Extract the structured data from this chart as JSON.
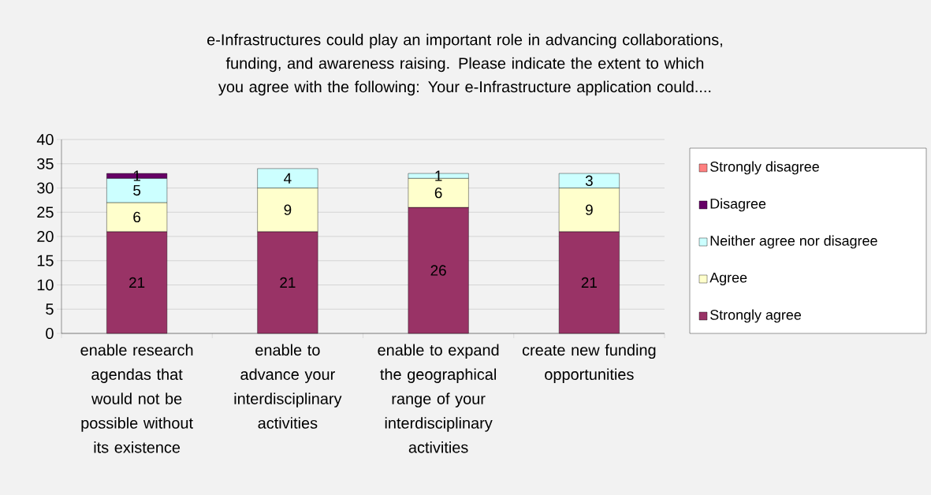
{
  "chart_data": {
    "type": "bar",
    "title": "e-Infrastructures could play an important role in advancing collaborations, funding, and awareness raising. Please indicate the extent to which you agree with the following:  Your e-Infrastructure application could....",
    "categories": [
      "enable research agendas that would not be possible without its existence",
      "enable to advance your interdisciplinary activities",
      "enable to expand the geographical range of your interdisciplinary activities",
      "create new funding opportunities"
    ],
    "series": [
      {
        "name": "Strongly agree",
        "color": "#993366",
        "values": [
          21,
          21,
          26,
          21
        ]
      },
      {
        "name": "Agree",
        "color": "#ffffcc",
        "values": [
          6,
          9,
          6,
          9
        ]
      },
      {
        "name": "Neither agree nor disagree",
        "color": "#ccffff",
        "values": [
          5,
          4,
          1,
          3
        ]
      },
      {
        "name": "Disagree",
        "color": "#660066",
        "values": [
          1,
          null,
          null,
          null
        ]
      },
      {
        "name": "Strongly disagree",
        "color": "#ff8080",
        "values": [
          null,
          null,
          null,
          null
        ]
      }
    ],
    "stacked": true,
    "data_labels": true,
    "grid": "y",
    "legend": "right",
    "ylim": [
      0,
      40
    ],
    "yticks": [
      0,
      5,
      10,
      15,
      20,
      25,
      30,
      35,
      40
    ]
  }
}
